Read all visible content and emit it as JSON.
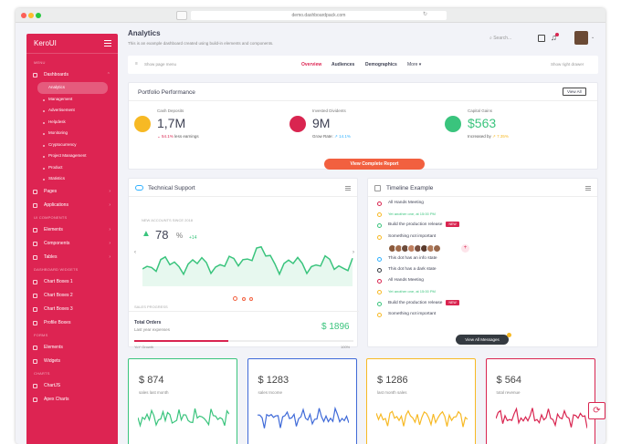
{
  "browser": {
    "url": "demo.dashboardpack.com"
  },
  "sidebar": {
    "brand": "KeroUI",
    "menu_section": "MENU",
    "dashboards": "Dashboards",
    "subitems": [
      "Analytics",
      "Management",
      "Advertisement",
      "Helpdesk",
      "Monitoring",
      "Cryptocurrency",
      "Project Management",
      "Product",
      "Statistics"
    ],
    "pages": "Pages",
    "applications": "Applications",
    "ui_section": "UI COMPONENTS",
    "elements": "Elements",
    "components": "Components",
    "tables": "Tables",
    "widgets_section": "DASHBOARD WIDGETS",
    "widgets": [
      "Chart Boxes 1",
      "Chart Boxes 2",
      "Chart Boxes 3",
      "Profile Boxes"
    ],
    "forms_section": "FORMS",
    "form_items": [
      "Elements",
      "Widgets"
    ],
    "charts_section": "CHARTS",
    "chart_items": [
      "ChartJS",
      "Apex Charts"
    ]
  },
  "header": {
    "title": "Analytics",
    "subtitle": "This is an example dashboard created using build-in elements and components.",
    "search": "Search..."
  },
  "toolbar": {
    "show_menu": "Show page menu",
    "tabs": [
      "Overview",
      "Audiences",
      "Demographics",
      "More"
    ],
    "show_drawer": "Show right drawer"
  },
  "portfolio": {
    "title": "Portfolio Performance",
    "view_all": "View All",
    "cash_label": "Cash Deposits",
    "cash_value": "1,7M",
    "cash_change": "54.1%",
    "cash_note": "less earnings",
    "students_label": "Invested Dividents",
    "students_value": "9M",
    "students_note": "Grow Rate:",
    "students_change": "14.1%",
    "gains_label": "Capital Gains",
    "gains_value": "$563",
    "gains_note": "Increased by",
    "gains_change": "7.35%",
    "report_button": "View Complete Report"
  },
  "support": {
    "title": "Technical Support",
    "since": "NEW ACCOUNTS SINCE 2018",
    "value": "78",
    "unit": "%",
    "delta": "+14",
    "sales_progress": "SALES PROGRESS",
    "orders_title": "Total Orders",
    "orders_sub": "Last year expenses",
    "orders_value": "1896",
    "orders_currency": "$",
    "yoy": "YoY Growth",
    "pct": "100%"
  },
  "timeline": {
    "title": "Timeline Example",
    "items": [
      {
        "text": "All Hands Meeting",
        "color": "#d92550"
      },
      {
        "text": "Yet another one, at 15:00 PM",
        "color": "#f7b924",
        "green": true
      },
      {
        "text": "Build the production release",
        "color": "#3ac47d",
        "badge": "NEW"
      },
      {
        "text": "Something not important",
        "color": "#f7b924"
      },
      {
        "text": "This dot has an info state",
        "color": "#30b1ff"
      },
      {
        "text": "This dot has a dark state",
        "color": "#343a40"
      },
      {
        "text": "All Hands Meeting",
        "color": "#d92550"
      },
      {
        "text": "Yet another one, at 15:00 PM",
        "color": "#f7b924",
        "green": true
      },
      {
        "text": "Build the production release",
        "color": "#3ac47d",
        "badge": "NEW"
      },
      {
        "text": "Something not important",
        "color": "#f7b924"
      }
    ],
    "button": "View All Messages"
  },
  "stats": [
    {
      "value": "874",
      "label": "sales last month",
      "color": "#3ac47d"
    },
    {
      "value": "1283",
      "label": "sales Income",
      "color": "#3f6ad8"
    },
    {
      "value": "1286",
      "label": "last month sales",
      "color": "#f7b924"
    },
    {
      "value": "564",
      "label": "total revenue",
      "color": "#d92550"
    }
  ],
  "currency": "$"
}
